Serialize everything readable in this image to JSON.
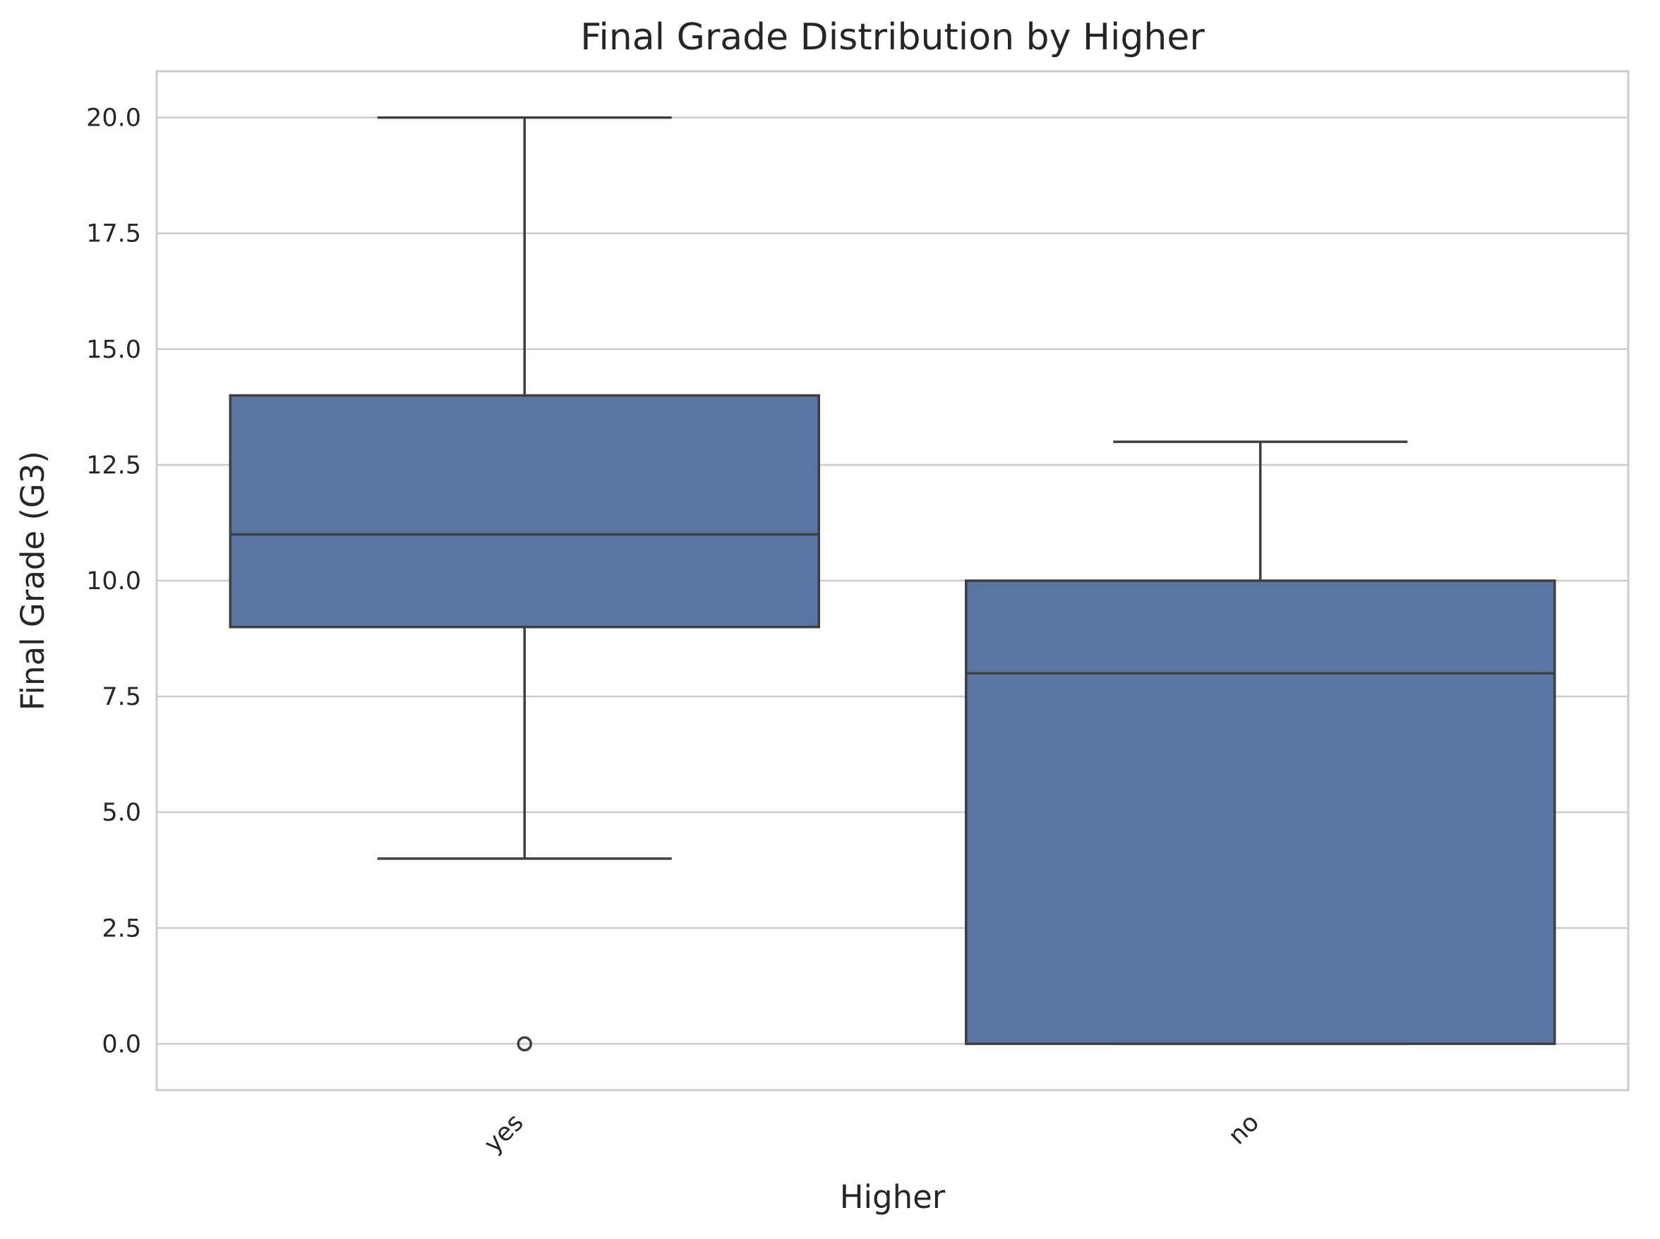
{
  "chart_data": {
    "type": "box",
    "title": "Final Grade Distribution by Higher",
    "xlabel": "Higher",
    "ylabel": "Final Grade (G3)",
    "ylim": [
      -1.0,
      21.0
    ],
    "yticks": [
      0.0,
      2.5,
      5.0,
      7.5,
      10.0,
      12.5,
      15.0,
      17.5,
      20.0
    ],
    "ytick_labels": [
      "0.0",
      "2.5",
      "5.0",
      "7.5",
      "10.0",
      "12.5",
      "15.0",
      "17.5",
      "20.0"
    ],
    "categories": [
      "yes",
      "no"
    ],
    "boxes": [
      {
        "category": "yes",
        "whisker_low": 4,
        "q1": 9,
        "median": 11,
        "q3": 14,
        "whisker_high": 20,
        "outliers": [
          0
        ]
      },
      {
        "category": "no",
        "whisker_low": 0,
        "q1": 0,
        "median": 8,
        "q3": 10,
        "whisker_high": 13,
        "outliers": []
      }
    ],
    "grid": "y",
    "x_tick_rotation_deg": 45,
    "colors": {
      "box_fill": "#5975a4",
      "line": "#3f3f3f",
      "grid": "#cccccc",
      "spine": "#cccccc"
    }
  }
}
